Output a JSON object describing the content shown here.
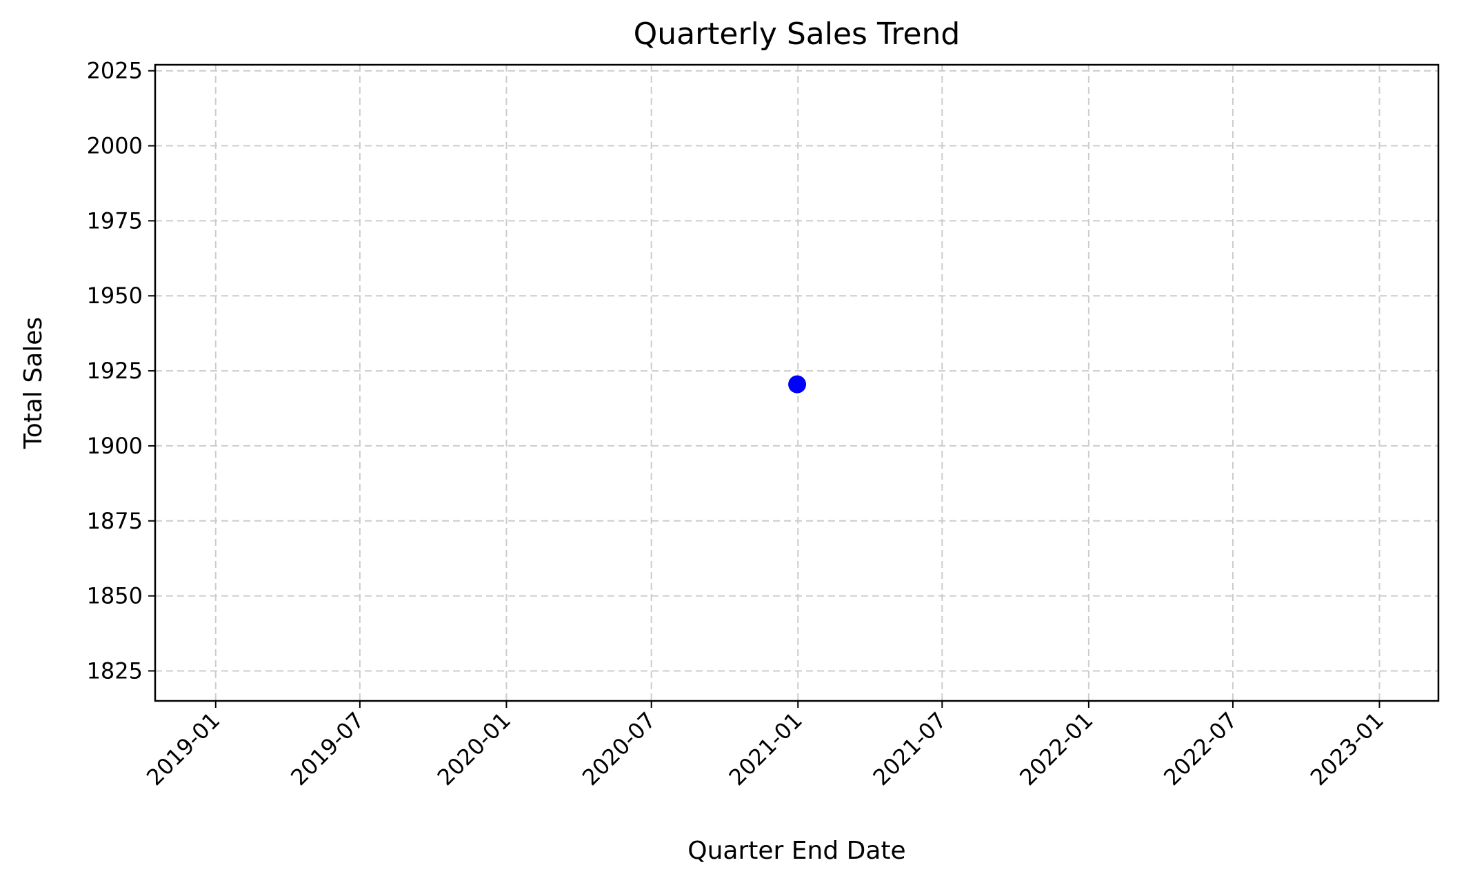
{
  "chart_data": {
    "type": "scatter",
    "title": "Quarterly Sales Trend",
    "xlabel": "Quarter End Date",
    "ylabel": "Total Sales",
    "x_axis_type": "date",
    "xlim": [
      "2018-10-17",
      "2023-03-16"
    ],
    "ylim": [
      1815,
      2027
    ],
    "x_ticks": [
      "2019-01",
      "2019-07",
      "2020-01",
      "2020-07",
      "2021-01",
      "2021-07",
      "2022-01",
      "2022-07",
      "2023-01"
    ],
    "x_tick_labels": [
      "2019-01",
      "2019-07",
      "2020-01",
      "2020-07",
      "2021-01",
      "2021-07",
      "2022-01",
      "2022-07",
      "2023-01"
    ],
    "y_ticks": [
      1825,
      1850,
      1875,
      1900,
      1925,
      1950,
      1975,
      2000,
      2025
    ],
    "y_tick_labels": [
      "1825",
      "1850",
      "1875",
      "1900",
      "1925",
      "1950",
      "1975",
      "2000",
      "2025"
    ],
    "grid": true,
    "grid_style": "dashed",
    "point_color": "#0000ff",
    "points": [
      {
        "x": "2020-12-31",
        "y": 1920.5
      }
    ]
  }
}
